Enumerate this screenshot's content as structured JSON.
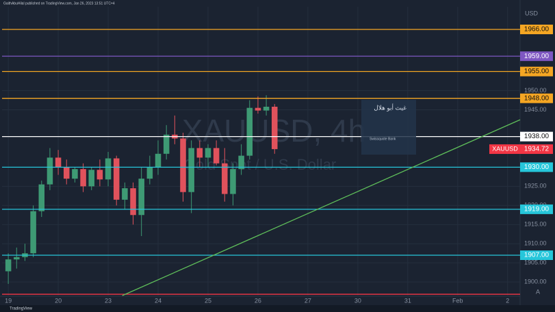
{
  "header": {
    "publisher": "GaithAbuHilal published on TradingView.com, Jan 26, 2023 13:51 UTC+4"
  },
  "chart_data": {
    "type": "candlestick",
    "title": "XAUUSD, 4h",
    "subtitle": "Gold Spot / U.S. Dollar",
    "currency": "USD",
    "categories": [
      null,
      null,
      null,
      null,
      null,
      null,
      null,
      null,
      null,
      null,
      null,
      null,
      null,
      null,
      null,
      null,
      null,
      null,
      null,
      null,
      null,
      null,
      null,
      null,
      null,
      null,
      null,
      null,
      null,
      null,
      null,
      null,
      null
    ],
    "open": [
      1902.8,
      1905.9,
      1906.5,
      1907.5,
      1918.5,
      1925.5,
      1932.5,
      1930,
      1927,
      1929.5,
      1925,
      1929.3,
      1926.8,
      1932.3,
      1921.5,
      1924.5,
      1917.5,
      1927,
      1930,
      1933.5,
      1938.5,
      1937.5,
      1923.5,
      1935,
      1932.5,
      1935,
      1931,
      1923,
      1929.5,
      1933,
      1945.5,
      1944.8,
      1945.8
    ],
    "high": [
      1907.5,
      1909,
      1910,
      1920,
      1926.5,
      1935,
      1934.5,
      1932,
      1930,
      1931,
      1930,
      1932,
      1934,
      1933,
      1926,
      1926,
      1930,
      1933,
      1937,
      1941,
      1943.5,
      1939,
      1937,
      1937,
      1936,
      1937,
      1935,
      1931,
      1936,
      1947.5,
      1948.5,
      1948.8,
      1946.5
    ],
    "low": [
      1899.5,
      1903.5,
      1905.5,
      1906.5,
      1917,
      1924,
      1928,
      1925.5,
      1926,
      1923.5,
      1924,
      1925,
      1925,
      1920,
      1919,
      1915,
      1912,
      1925.5,
      1928,
      1932,
      1936,
      1921,
      1918,
      1930,
      1930,
      1930.5,
      1921,
      1920,
      1928,
      1932,
      1944,
      1943.5,
      1933.5
    ],
    "close": [
      1905.9,
      1906.5,
      1907.5,
      1918.5,
      1925.5,
      1932.5,
      1930,
      1927,
      1929.5,
      1925,
      1929.3,
      1926.8,
      1932.3,
      1921.5,
      1924.5,
      1917.5,
      1927,
      1930,
      1933.5,
      1938.5,
      1937.5,
      1923.5,
      1935,
      1932.5,
      1935,
      1931,
      1923,
      1929.5,
      1933,
      1945.5,
      1944.8,
      1945.8,
      1934.72
    ],
    "up_color": "#3e9a74",
    "down_color": "#e0525c",
    "xlim": [
      -0.75,
      61.5
    ],
    "xticks": [
      {
        "value": 0,
        "label": "19"
      },
      {
        "value": 6,
        "label": "20"
      },
      {
        "value": 12,
        "label": "23"
      },
      {
        "value": 18,
        "label": "24"
      },
      {
        "value": 24,
        "label": "25"
      },
      {
        "value": 30,
        "label": "26"
      },
      {
        "value": 36,
        "label": "27"
      },
      {
        "value": 42,
        "label": "30"
      },
      {
        "value": 48,
        "label": "31"
      },
      {
        "value": 54,
        "label": "Feb"
      },
      {
        "value": 60,
        "label": "2"
      }
    ],
    "ylim": [
      1896.45,
      1971.9
    ],
    "yticks": [
      {
        "value": 1900,
        "label": "1900.00"
      },
      {
        "value": 1905,
        "label": "1905.00"
      },
      {
        "value": 1910,
        "label": "1910.00"
      },
      {
        "value": 1915,
        "label": "1915.00"
      },
      {
        "value": 1920,
        "label": "1920.00"
      },
      {
        "value": 1925,
        "label": "1925.00"
      },
      {
        "value": 1945,
        "label": "1945.00"
      },
      {
        "value": 1950,
        "label": "1950.00"
      }
    ],
    "grid": true,
    "levels": [
      {
        "value": 1966,
        "label": "1966.00",
        "color": "#f5a623"
      },
      {
        "value": 1959,
        "label": "1959.00",
        "color": "#7e57c2"
      },
      {
        "value": 1955,
        "label": "1955.00",
        "color": "#f5a623"
      },
      {
        "value": 1948,
        "label": "1948.00",
        "color": "#f5a623"
      },
      {
        "value": 1938,
        "label": "1938.00",
        "color": "#ffffff"
      },
      {
        "value": 1930,
        "label": "1930.00",
        "color": "#26c6da"
      },
      {
        "value": 1919,
        "label": "1919.00",
        "color": "#26c6da"
      },
      {
        "value": 1907,
        "label": "1907.00",
        "color": "#26c6da"
      },
      {
        "value": 1896.8,
        "color": "#f23645"
      }
    ],
    "last_price": {
      "name": "XAUUSD",
      "value": 1934.72,
      "label": "1934.72",
      "color": "#f23645"
    },
    "trendline": {
      "x": [
        13.7,
        61.5
      ],
      "y": [
        1896.45,
        1942.4
      ],
      "color": "#5fbf5a"
    }
  },
  "overlay": {
    "name": "غيث أبو هلال",
    "broker": "Swissquote Bank"
  },
  "footer": {
    "brand": "TradingView"
  }
}
